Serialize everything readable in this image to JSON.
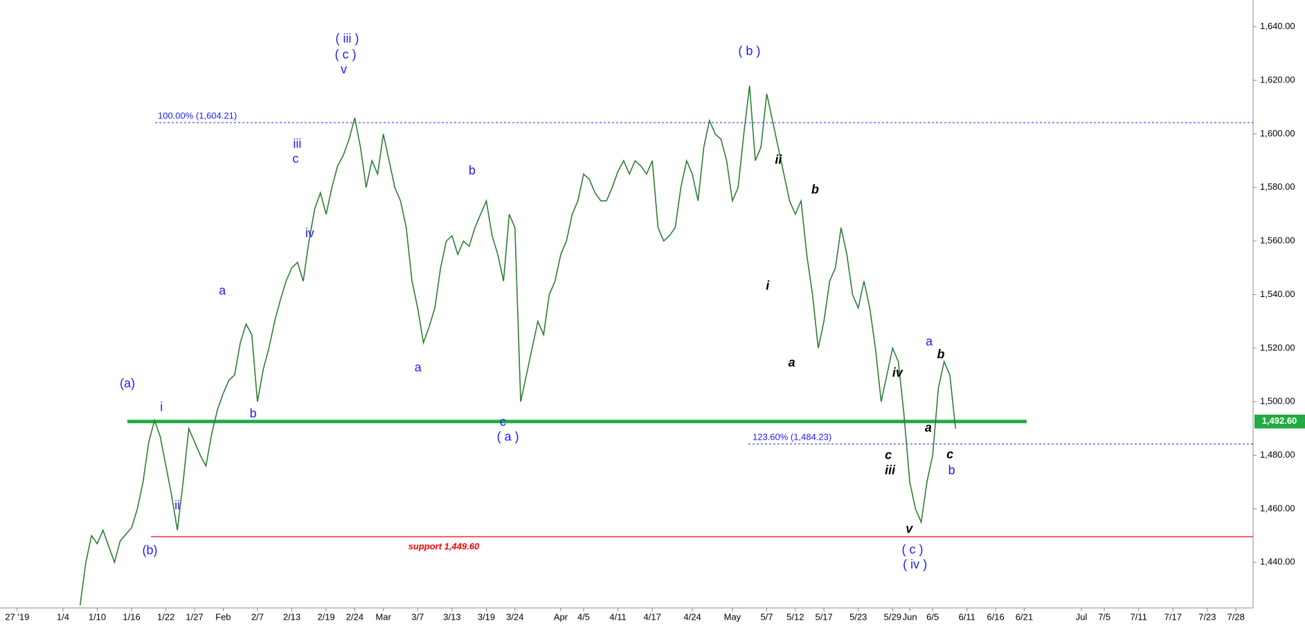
{
  "chart_data": {
    "type": "line",
    "x": [
      7,
      8,
      9,
      10,
      11,
      13,
      14,
      16,
      17,
      18,
      19,
      20,
      21,
      22,
      23,
      24,
      25,
      26,
      27,
      28,
      29,
      30,
      31,
      32,
      33,
      34,
      35,
      36,
      37,
      38,
      39,
      40,
      41,
      42,
      43,
      44,
      45,
      46,
      47,
      48,
      49,
      50,
      51,
      52,
      53,
      54,
      55,
      56,
      57,
      58,
      59,
      60,
      61,
      62,
      63,
      64,
      65,
      66,
      67,
      68,
      69,
      70,
      71,
      72,
      73,
      74,
      75,
      76,
      77,
      78,
      79,
      80,
      81,
      82,
      83,
      84,
      85,
      86,
      87,
      88,
      89,
      90,
      91,
      92,
      93,
      94,
      95,
      96,
      97,
      98,
      99,
      100,
      101,
      102,
      103,
      104,
      105,
      106,
      107,
      108,
      109,
      110,
      111,
      112,
      113,
      114,
      115,
      116,
      117,
      118,
      119,
      120,
      121,
      122,
      123,
      124,
      125,
      126,
      127,
      128,
      129,
      130,
      131,
      132,
      133,
      134,
      135,
      136,
      137,
      138,
      139,
      140,
      141,
      142,
      143,
      144,
      145,
      146,
      147,
      148,
      149,
      150,
      151,
      152,
      153,
      154,
      155,
      156,
      157,
      158,
      159,
      160
    ],
    "values": [
      1424,
      1440,
      1450,
      1447,
      1452,
      1440,
      1448,
      1453,
      1460,
      1470,
      1485,
      1493,
      1487,
      1476,
      1465,
      1452,
      1470,
      1490,
      1485,
      1480,
      1476,
      1488,
      1497,
      1503,
      1508,
      1510,
      1522,
      1529,
      1525,
      1500,
      1512,
      1520,
      1530,
      1538,
      1545,
      1550,
      1552,
      1545,
      1560,
      1572,
      1578,
      1570,
      1580,
      1588,
      1592,
      1598,
      1606,
      1595,
      1580,
      1590,
      1585,
      1600,
      1590,
      1580,
      1575,
      1565,
      1545,
      1535,
      1522,
      1528,
      1535,
      1550,
      1560,
      1562,
      1555,
      1560,
      1558,
      1565,
      1570,
      1575,
      1562,
      1555,
      1545,
      1570,
      1565,
      1500,
      1510,
      1520,
      1530,
      1525,
      1540,
      1545,
      1555,
      1560,
      1570,
      1575,
      1585,
      1583,
      1578,
      1575,
      1575,
      1580,
      1586,
      1590,
      1585,
      1590,
      1588,
      1585,
      1590,
      1565,
      1560,
      1562,
      1565,
      1580,
      1590,
      1585,
      1575,
      1595,
      1605,
      1600,
      1598,
      1590,
      1575,
      1580,
      1600,
      1618,
      1590,
      1595,
      1615,
      1605,
      1595,
      1585,
      1575,
      1570,
      1575,
      1555,
      1540,
      1520,
      1530,
      1545,
      1550,
      1565,
      1555,
      1540,
      1535,
      1545,
      1535,
      1520,
      1500,
      1510,
      1520,
      1515,
      1495,
      1470,
      1460,
      1455,
      1470,
      1480,
      1505,
      1515,
      1510,
      1490
    ],
    "color": "#2e7d32",
    "xlim": [
      -7,
      212
    ],
    "ylim": [
      1423,
      1650
    ],
    "xticks": [
      {
        "value": -4,
        "label": "27 '19"
      },
      {
        "value": 4,
        "label": "1/4"
      },
      {
        "value": 10,
        "label": "1/10"
      },
      {
        "value": 16,
        "label": "1/16"
      },
      {
        "value": 22,
        "label": "1/22"
      },
      {
        "value": 27,
        "label": "1/27"
      },
      {
        "value": 32,
        "label": "Feb"
      },
      {
        "value": 38,
        "label": "2/7"
      },
      {
        "value": 44,
        "label": "2/13"
      },
      {
        "value": 50,
        "label": "2/19"
      },
      {
        "value": 55,
        "label": "2/24"
      },
      {
        "value": 60,
        "label": "Mar"
      },
      {
        "value": 66,
        "label": "3/7"
      },
      {
        "value": 72,
        "label": "3/13"
      },
      {
        "value": 78,
        "label": "3/19"
      },
      {
        "value": 83,
        "label": "3/24"
      },
      {
        "value": 91,
        "label": "Apr"
      },
      {
        "value": 95,
        "label": "4/5"
      },
      {
        "value": 101,
        "label": "4/11"
      },
      {
        "value": 107,
        "label": "4/17"
      },
      {
        "value": 114,
        "label": "4/24"
      },
      {
        "value": 121,
        "label": "May"
      },
      {
        "value": 127,
        "label": "5/7"
      },
      {
        "value": 132,
        "label": "5/12"
      },
      {
        "value": 137,
        "label": "5/17"
      },
      {
        "value": 143,
        "label": "5/23"
      },
      {
        "value": 149,
        "label": "5/29"
      },
      {
        "value": 152,
        "label": "Jun"
      },
      {
        "value": 156,
        "label": "6/5"
      },
      {
        "value": 162,
        "label": "6/11"
      },
      {
        "value": 167,
        "label": "6/16"
      },
      {
        "value": 172,
        "label": "6/21"
      },
      {
        "value": 182,
        "label": "Jul"
      },
      {
        "value": 186,
        "label": "7/5"
      },
      {
        "value": 192,
        "label": "7/11"
      },
      {
        "value": 198,
        "label": "7/17"
      },
      {
        "value": 204,
        "label": "7/23"
      },
      {
        "value": 209,
        "label": "7/28"
      }
    ],
    "yticks": [
      {
        "value": 1440,
        "label": "1,440.00"
      },
      {
        "value": 1460,
        "label": "1,460.00"
      },
      {
        "value": 1480,
        "label": "1,480.00"
      },
      {
        "value": 1500,
        "label": "1,500.00"
      },
      {
        "value": 1520,
        "label": "1,520.00"
      },
      {
        "value": 1540,
        "label": "1,540.00"
      },
      {
        "value": 1560,
        "label": "1,560.00"
      },
      {
        "value": 1580,
        "label": "1,580.00"
      },
      {
        "value": 1600,
        "label": "1,600.00"
      },
      {
        "value": 1620,
        "label": "1,620.00"
      },
      {
        "value": 1640,
        "label": "1,640.00"
      }
    ],
    "levels": [
      {
        "value": 1604.21,
        "label": "100.00% (1,604.21)",
        "color": "#1a1aff",
        "style": "dotted"
      },
      {
        "value": 1484.23,
        "label": "123.60% (1,484.23)",
        "color": "#1a1aff",
        "style": "dotted"
      },
      {
        "value": 1449.6,
        "label": "support 1,449.60",
        "color": "#ff0000",
        "style": "solid"
      },
      {
        "value": 1492.6,
        "label": "1,492.60",
        "color": "#22aa44",
        "style": "thick"
      }
    ],
    "annotations": [
      "( iii )",
      "( c )",
      "v",
      "( b )",
      "iii",
      "c",
      "iv",
      "b",
      "a",
      "a",
      "(a)",
      "i",
      "b",
      "c",
      "( a )",
      "ii",
      "(b)",
      "ii",
      "b",
      "i",
      "a",
      "iv",
      "a",
      "b",
      "a",
      "c",
      "iii",
      "c",
      "b",
      "v",
      "( c )",
      "( iv )"
    ]
  }
}
